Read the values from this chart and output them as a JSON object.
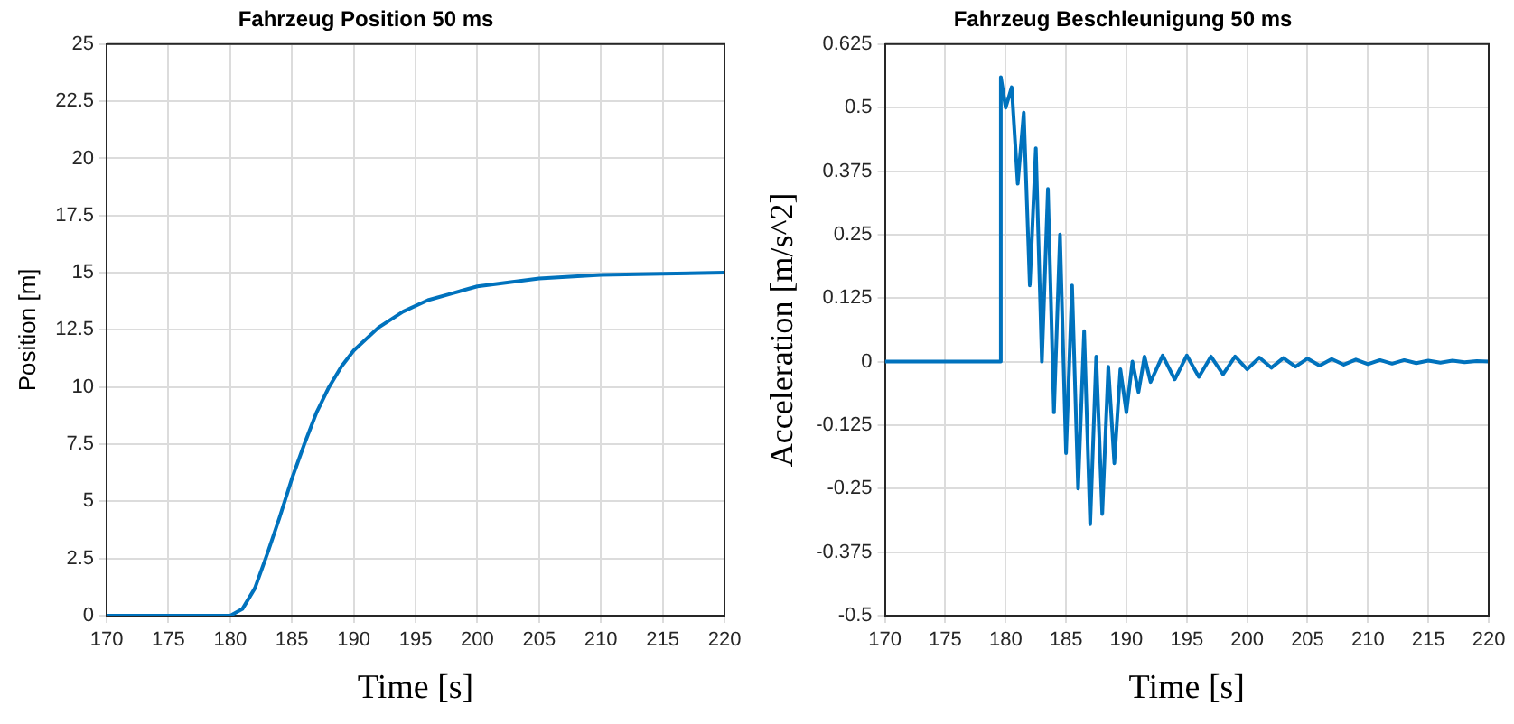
{
  "chart_data": [
    {
      "type": "line",
      "title": "Fahrzeug Position 50 ms",
      "xlabel": "Time [s]",
      "ylabel": "Position [m]",
      "xlim": [
        170,
        220
      ],
      "xticks": [
        170,
        175,
        180,
        185,
        190,
        195,
        200,
        205,
        210,
        215,
        220
      ],
      "ylim": [
        0,
        25
      ],
      "yticks": [
        0,
        2.5,
        5,
        7.5,
        10,
        12.5,
        15,
        17.5,
        20,
        22.5,
        25
      ],
      "grid": true,
      "marker": "none",
      "x": [
        170,
        180,
        181,
        182,
        183,
        184,
        185,
        186,
        187,
        188,
        189,
        190,
        192,
        194,
        196,
        198,
        200,
        205,
        210,
        215,
        220
      ],
      "series": [
        {
          "color": "#0072bd",
          "values": [
            0,
            0,
            0.3,
            1.2,
            2.7,
            4.3,
            6,
            7.5,
            8.9,
            10,
            10.9,
            11.6,
            12.6,
            13.3,
            13.8,
            14.1,
            14.4,
            14.75,
            14.9,
            14.95,
            15
          ]
        }
      ]
    },
    {
      "type": "line",
      "title": "Fahrzeug Beschleunigung 50 ms",
      "xlabel": "Time [s]",
      "ylabel": "Acceleration [m/s^2]",
      "xlim": [
        170,
        220
      ],
      "xticks": [
        170,
        175,
        180,
        185,
        190,
        195,
        200,
        205,
        210,
        215,
        220
      ],
      "ylim": [
        -0.5,
        0.625
      ],
      "yticks": [
        -0.5,
        -0.375,
        -0.25,
        -0.125,
        0,
        0.125,
        0.25,
        0.375,
        0.5,
        0.625
      ],
      "grid": true,
      "marker": "none",
      "x": [
        170,
        179.5,
        179.6,
        180,
        180.5,
        181,
        181.5,
        182,
        182.5,
        183,
        183.5,
        184,
        184.5,
        185,
        185.5,
        186,
        186.5,
        187,
        187.5,
        188,
        188.5,
        189,
        189.5,
        190,
        190.5,
        191,
        191.5,
        192,
        193,
        194,
        195,
        196,
        197,
        198,
        199,
        200,
        201,
        202,
        203,
        204,
        205,
        206,
        207,
        208,
        209,
        210,
        211,
        212,
        213,
        214,
        215,
        216,
        217,
        218,
        219,
        220
      ],
      "series": [
        {
          "color": "#0072bd",
          "values": [
            0,
            0,
            0.56,
            0.5,
            0.54,
            0.35,
            0.49,
            0.15,
            0.42,
            0,
            0.34,
            -0.1,
            0.25,
            -0.18,
            0.15,
            -0.25,
            0.06,
            -0.32,
            0.01,
            -0.3,
            -0.01,
            -0.2,
            -0.015,
            -0.1,
            0,
            -0.06,
            0.01,
            -0.04,
            0.012,
            -0.035,
            0.012,
            -0.03,
            0.01,
            -0.025,
            0.01,
            -0.015,
            0.008,
            -0.012,
            0.007,
            -0.01,
            0.006,
            -0.008,
            0.005,
            -0.006,
            0.004,
            -0.005,
            0.003,
            -0.004,
            0.003,
            -0.003,
            0.002,
            -0.002,
            0.002,
            -0.001,
            0.001,
            0
          ]
        }
      ]
    }
  ]
}
